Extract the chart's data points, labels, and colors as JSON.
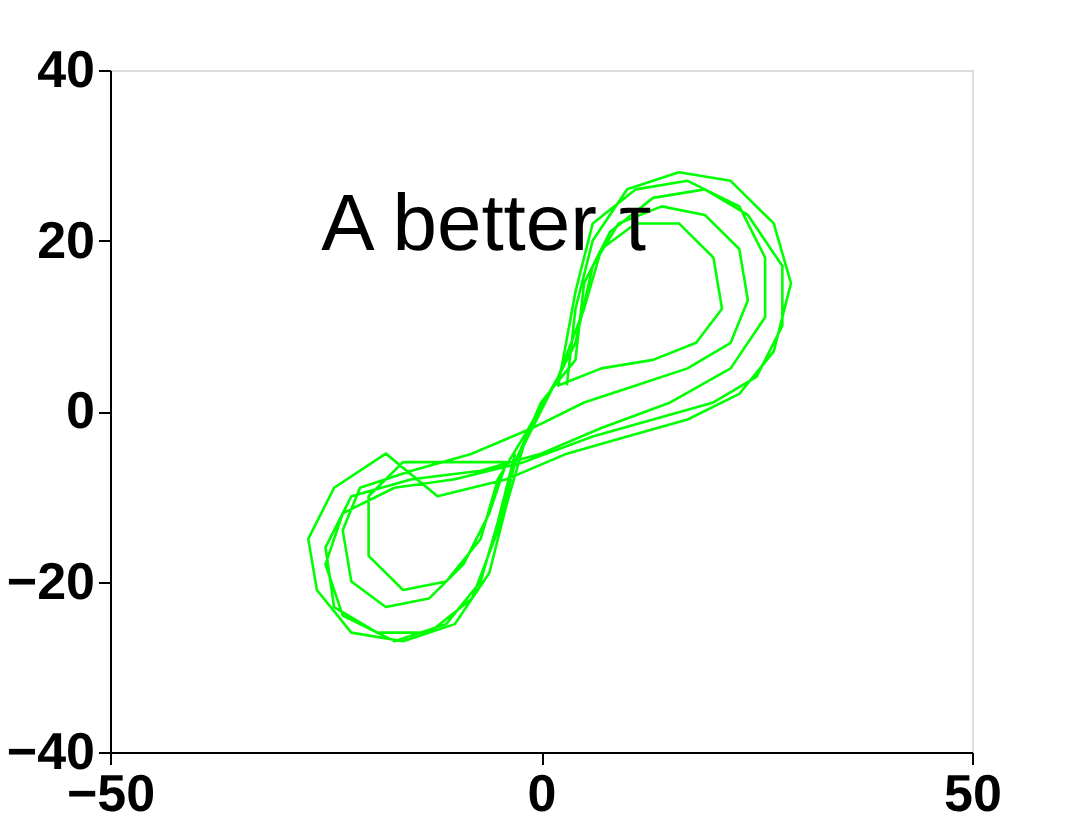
{
  "chart_data": {
    "type": "line",
    "annotations": [
      "A better τ"
    ],
    "xlim": [
      -50,
      50
    ],
    "xticks": [
      -50,
      0,
      50
    ],
    "ylim": [
      -40,
      40
    ],
    "yticks": [
      -40,
      -20,
      0,
      20,
      40
    ],
    "grid": false,
    "marker": "none",
    "line_style": "solid",
    "series": [
      {
        "color": "#00ff00",
        "x": [
          3,
          4,
          6,
          10,
          16,
          22,
          27,
          29,
          27,
          23,
          17,
          10,
          3,
          -4,
          -12,
          -18,
          -24,
          -27,
          -26,
          -22,
          -16,
          -10,
          -6,
          -4,
          -2,
          1,
          4,
          6,
          9,
          14,
          19,
          23,
          24,
          22,
          17,
          11,
          5,
          -1,
          -8,
          -15,
          -21,
          -23,
          -22,
          -18,
          -13,
          -9,
          -6,
          -4,
          -9,
          -16,
          -20,
          -20,
          -16,
          -11,
          -7,
          -5,
          -2,
          2,
          5,
          7,
          11,
          16,
          20,
          21,
          18,
          13,
          7,
          2,
          4,
          6,
          11,
          17,
          23,
          26,
          26,
          22,
          15,
          7,
          0,
          -7,
          -15,
          -22,
          -25,
          -24,
          -19,
          -13,
          -8,
          -5,
          -3,
          0,
          4,
          5,
          8,
          13,
          19,
          24,
          28,
          28,
          25,
          20,
          13,
          6,
          -2,
          -10,
          -17,
          -23,
          -25,
          -23,
          -17,
          -11,
          -7,
          -5,
          -3
        ],
        "values": [
          3,
          12,
          20,
          26,
          28,
          27,
          22,
          15,
          7,
          2,
          -1,
          -3,
          -5,
          -8,
          -10,
          -5,
          -9,
          -15,
          -21,
          -26,
          -27,
          -25,
          -19,
          -11,
          -4,
          2,
          8,
          17,
          22,
          24,
          23,
          19,
          13,
          8,
          5,
          3,
          1,
          -2,
          -5,
          -7,
          -9,
          -14,
          -20,
          -23,
          -22,
          -18,
          -12,
          -6,
          -6,
          -6,
          -10,
          -17,
          -21,
          -20,
          -15,
          -8,
          -3,
          4,
          12,
          19,
          22,
          22,
          18,
          12,
          8,
          6,
          5,
          3,
          14,
          22,
          26,
          27,
          24,
          18,
          11,
          5,
          1,
          -2,
          -5,
          -7,
          -8,
          -10,
          -16,
          -23,
          -26,
          -26,
          -22,
          -14,
          -6,
          1,
          6,
          15,
          21,
          25,
          26,
          23,
          17,
          10,
          4,
          1,
          -1,
          -3,
          -6,
          -8,
          -9,
          -12,
          -18,
          -24,
          -27,
          -25,
          -20,
          -13,
          -5
        ]
      }
    ]
  }
}
